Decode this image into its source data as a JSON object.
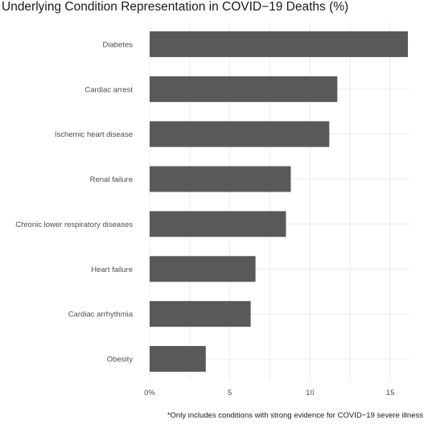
{
  "chart_data": {
    "type": "bar",
    "orientation": "horizontal",
    "title": "Underlying Condition Representation in COVID−19 Deaths (%)",
    "caption": "*Only includes conditions with strong evidence for COVID−19 severe illness",
    "xlabel": "",
    "ylabel": "",
    "categories": [
      "Diabetes",
      "Cardiac arrest",
      "Ischemic heart disease",
      "Renal failure",
      "Chronic lower respiratory diseases",
      "Heart failure",
      "Cardiac arrhythmia",
      "Obesity"
    ],
    "values": [
      16.1,
      11.7,
      11.2,
      8.8,
      8.5,
      6.6,
      6.3,
      3.5
    ],
    "xlim": [
      0,
      16.2
    ],
    "xticks": [
      0,
      5,
      10,
      15
    ],
    "xtick_labels": [
      "0%",
      "5",
      "10",
      "15"
    ],
    "grid": true,
    "bar_color": "#595959",
    "grid_color": "#ebebeb"
  }
}
